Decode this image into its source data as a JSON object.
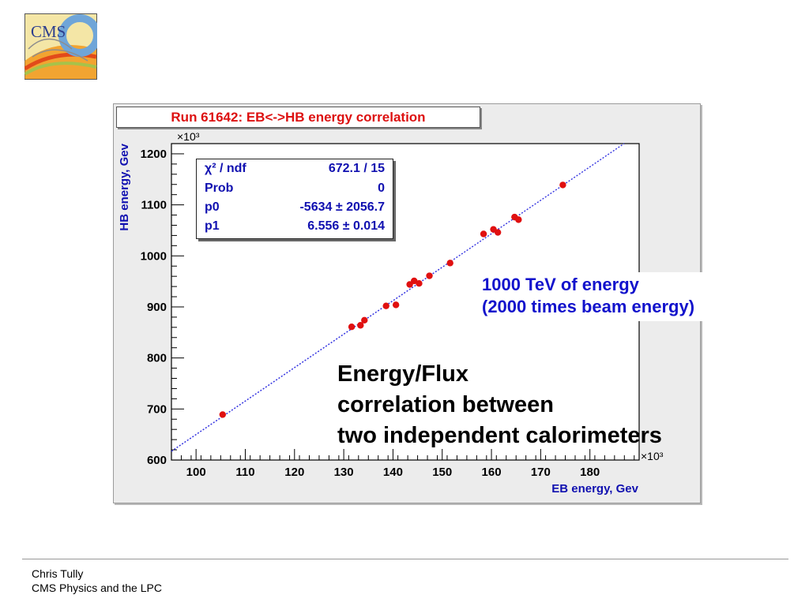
{
  "logo": {
    "text": "CMS"
  },
  "chart_data": {
    "type": "scatter",
    "title": "Run 61642: EB<->HB energy correlation",
    "xlabel": "EB energy, Gev",
    "ylabel": "HB energy, Gev",
    "x_multiplier": "×10³",
    "y_multiplier": "×10³",
    "xlim": [
      95,
      190
    ],
    "ylim": [
      600,
      1220
    ],
    "xticks": [
      100,
      110,
      120,
      130,
      140,
      150,
      160,
      170,
      180
    ],
    "yticks": [
      600,
      700,
      800,
      900,
      1000,
      1100,
      1200
    ],
    "points": [
      [
        105.4,
        689
      ],
      [
        131.6,
        861
      ],
      [
        133.4,
        864
      ],
      [
        134.2,
        874
      ],
      [
        138.6,
        902
      ],
      [
        140.6,
        904
      ],
      [
        143.4,
        944
      ],
      [
        144.3,
        951
      ],
      [
        145.3,
        946
      ],
      [
        147.4,
        961
      ],
      [
        151.6,
        986
      ],
      [
        158.4,
        1043
      ],
      [
        160.4,
        1052
      ],
      [
        161.3,
        1046
      ],
      [
        164.7,
        1076
      ],
      [
        165.5,
        1071
      ],
      [
        174.5,
        1139
      ]
    ],
    "fit": {
      "p0": -5.634,
      "p1": 6.556
    },
    "stats": [
      {
        "key": "χ² / ndf",
        "value": "672.1 / 15"
      },
      {
        "key": "Prob",
        "value": "0"
      },
      {
        "key": "p0",
        "value": "-5634 ± 2056.7"
      },
      {
        "key": "p1",
        "value": "6.556 ± 0.014"
      }
    ],
    "marker_color": "#e01010",
    "fit_color": "#3030e0",
    "label_color": "#1010b0",
    "grid": false
  },
  "annotations": {
    "box": [
      "1000 TeV of energy",
      "(2000 times beam energy)"
    ],
    "text": [
      "Energy/Flux",
      "correlation between",
      "two independent calorimeters"
    ]
  },
  "footer": {
    "author": "Chris Tully",
    "subtitle": "CMS Physics and the LPC"
  }
}
